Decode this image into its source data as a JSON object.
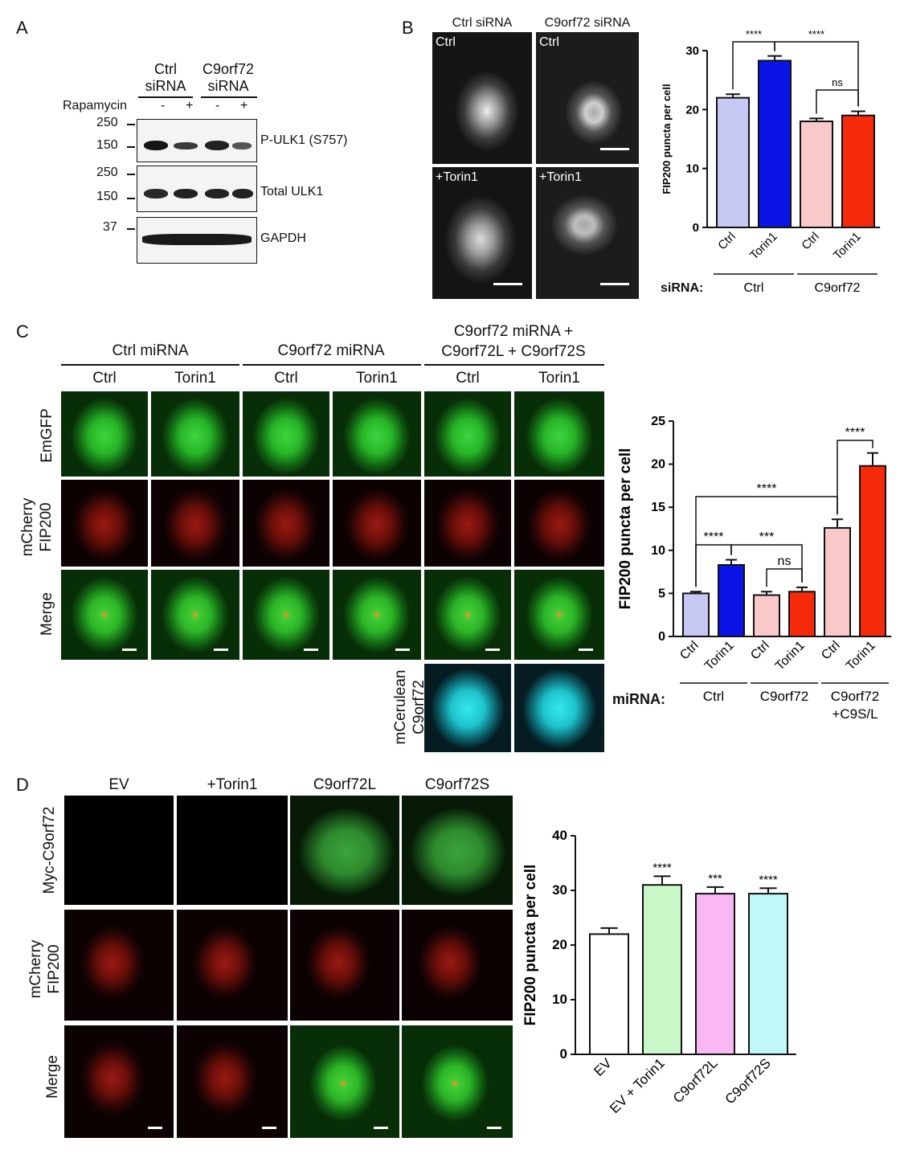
{
  "panels": {
    "a": "A",
    "b": "B",
    "c": "C",
    "d": "D"
  },
  "panel_a": {
    "ctrl_sirna": [
      "Ctrl",
      "siRNA"
    ],
    "c9_sirna": [
      "C9orf72",
      "siRNA"
    ],
    "rapamycin": "Rapamycin",
    "minus": "-",
    "plus": "+",
    "mw": {
      "a1": "250",
      "a2": "150",
      "b1": "250",
      "b2": "150",
      "c1": "37"
    },
    "blots": [
      "P-ULK1 (S757)",
      "Total ULK1",
      "GAPDH"
    ]
  },
  "panel_b": {
    "col_headers": [
      "Ctrl siRNA",
      "C9orf72 siRNA"
    ],
    "tile_labels": [
      "Ctrl",
      "Ctrl",
      "+Torin1",
      "+Torin1"
    ],
    "siRNA_label": "siRNA:"
  },
  "panel_c": {
    "group_headers": [
      "Ctrl miRNA",
      "C9orf72 miRNA",
      "C9orf72 miRNA +",
      "C9orf72L + C9orf72S"
    ],
    "col_headers": [
      "Ctrl",
      "Torin1",
      "Ctrl",
      "Torin1",
      "Ctrl",
      "Torin1"
    ],
    "row_labels": {
      "r1": "EmGFP",
      "r2a": "mCherry",
      "r2b": "FIP200",
      "r3": "Merge",
      "r4a": "mCerulean",
      "r4b": "C9orf72"
    },
    "miRNA_label": "miRNA:"
  },
  "panel_d": {
    "col_headers": [
      "EV",
      "+Torin1",
      "C9orf72L",
      "C9orf72S"
    ],
    "row_labels": {
      "r1": "Myc-C9orf72",
      "r2a": "mCherry",
      "r2b": "FIP200",
      "r3": "Merge"
    }
  },
  "colors": {
    "lavender": "#c8c8f4",
    "blue": "#0a14e6",
    "pink": "#f9c9c9",
    "red": "#f52a0a",
    "mint": "#c8f8c8",
    "magenta": "#f9b8f4",
    "cyan": "#c0f8f8",
    "white": "#ffffff"
  },
  "chart_data": [
    {
      "type": "bar",
      "ylabel": "FIP200 puncta per cell",
      "ylim": [
        0,
        30
      ],
      "yticks": [
        0,
        10,
        20,
        30
      ],
      "categories": [
        "Ctrl",
        "Torin1",
        "Ctrl",
        "Torin1"
      ],
      "groups": [
        {
          "label": "Ctrl",
          "span": [
            0,
            1
          ]
        },
        {
          "label": "C9orf72",
          "span": [
            2,
            3
          ]
        }
      ],
      "values": [
        22.0,
        28.3,
        18.0,
        19.0
      ],
      "errors": [
        0.6,
        0.8,
        0.5,
        0.7
      ],
      "colors": [
        "#c8c8f4",
        "#0a14e6",
        "#f9c9c9",
        "#f52a0a"
      ],
      "annotations": [
        {
          "text": "****",
          "from": 0,
          "to": 1
        },
        {
          "text": "****",
          "from": 1,
          "to": 3
        },
        {
          "text": "ns",
          "from": 2,
          "to": 3
        }
      ]
    },
    {
      "type": "bar",
      "ylabel": "FIP200 puncta per cell",
      "ylim": [
        0,
        25
      ],
      "yticks": [
        0,
        5,
        10,
        15,
        20,
        25
      ],
      "categories": [
        "Ctrl",
        "Torin1",
        "Ctrl",
        "Torin1",
        "Ctrl",
        "Torin1"
      ],
      "groups": [
        {
          "label": "Ctrl",
          "span": [
            0,
            1
          ]
        },
        {
          "label": "C9orf72",
          "span": [
            2,
            3
          ]
        },
        {
          "label": "C9orf72",
          "label2": "+C9S/L",
          "span": [
            4,
            5
          ]
        }
      ],
      "values": [
        5.0,
        8.3,
        4.8,
        5.2,
        12.6,
        19.8
      ],
      "errors": [
        0.2,
        0.6,
        0.4,
        0.5,
        1.0,
        1.5
      ],
      "colors": [
        "#c8c8f4",
        "#0a14e6",
        "#f9c9c9",
        "#f52a0a",
        "#f9c9c9",
        "#f52a0a"
      ],
      "annotations": [
        {
          "text": "****",
          "from": 0,
          "to": 1
        },
        {
          "text": "***",
          "from": 1,
          "to": 3
        },
        {
          "text": "ns",
          "from": 2,
          "to": 3
        },
        {
          "text": "****",
          "from": 0,
          "to": 4
        },
        {
          "text": "****",
          "from": 4,
          "to": 5
        }
      ]
    },
    {
      "type": "bar",
      "ylabel": "FIP200 puncta per cell",
      "ylim": [
        0,
        40
      ],
      "yticks": [
        0,
        10,
        20,
        30,
        40
      ],
      "categories": [
        "EV",
        "EV + Torin1",
        "C9orf72L",
        "C9orf72S"
      ],
      "values": [
        22.0,
        31.0,
        29.4,
        29.4
      ],
      "errors": [
        1.1,
        1.6,
        1.2,
        1.0
      ],
      "colors": [
        "#ffffff",
        "#c8f8c8",
        "#f9b8f4",
        "#c0f8f8"
      ],
      "annotations": [
        {
          "text": "",
          "bar": 0
        },
        {
          "text": "****",
          "bar": 1
        },
        {
          "text": "***",
          "bar": 2
        },
        {
          "text": "****",
          "bar": 3
        }
      ]
    }
  ]
}
